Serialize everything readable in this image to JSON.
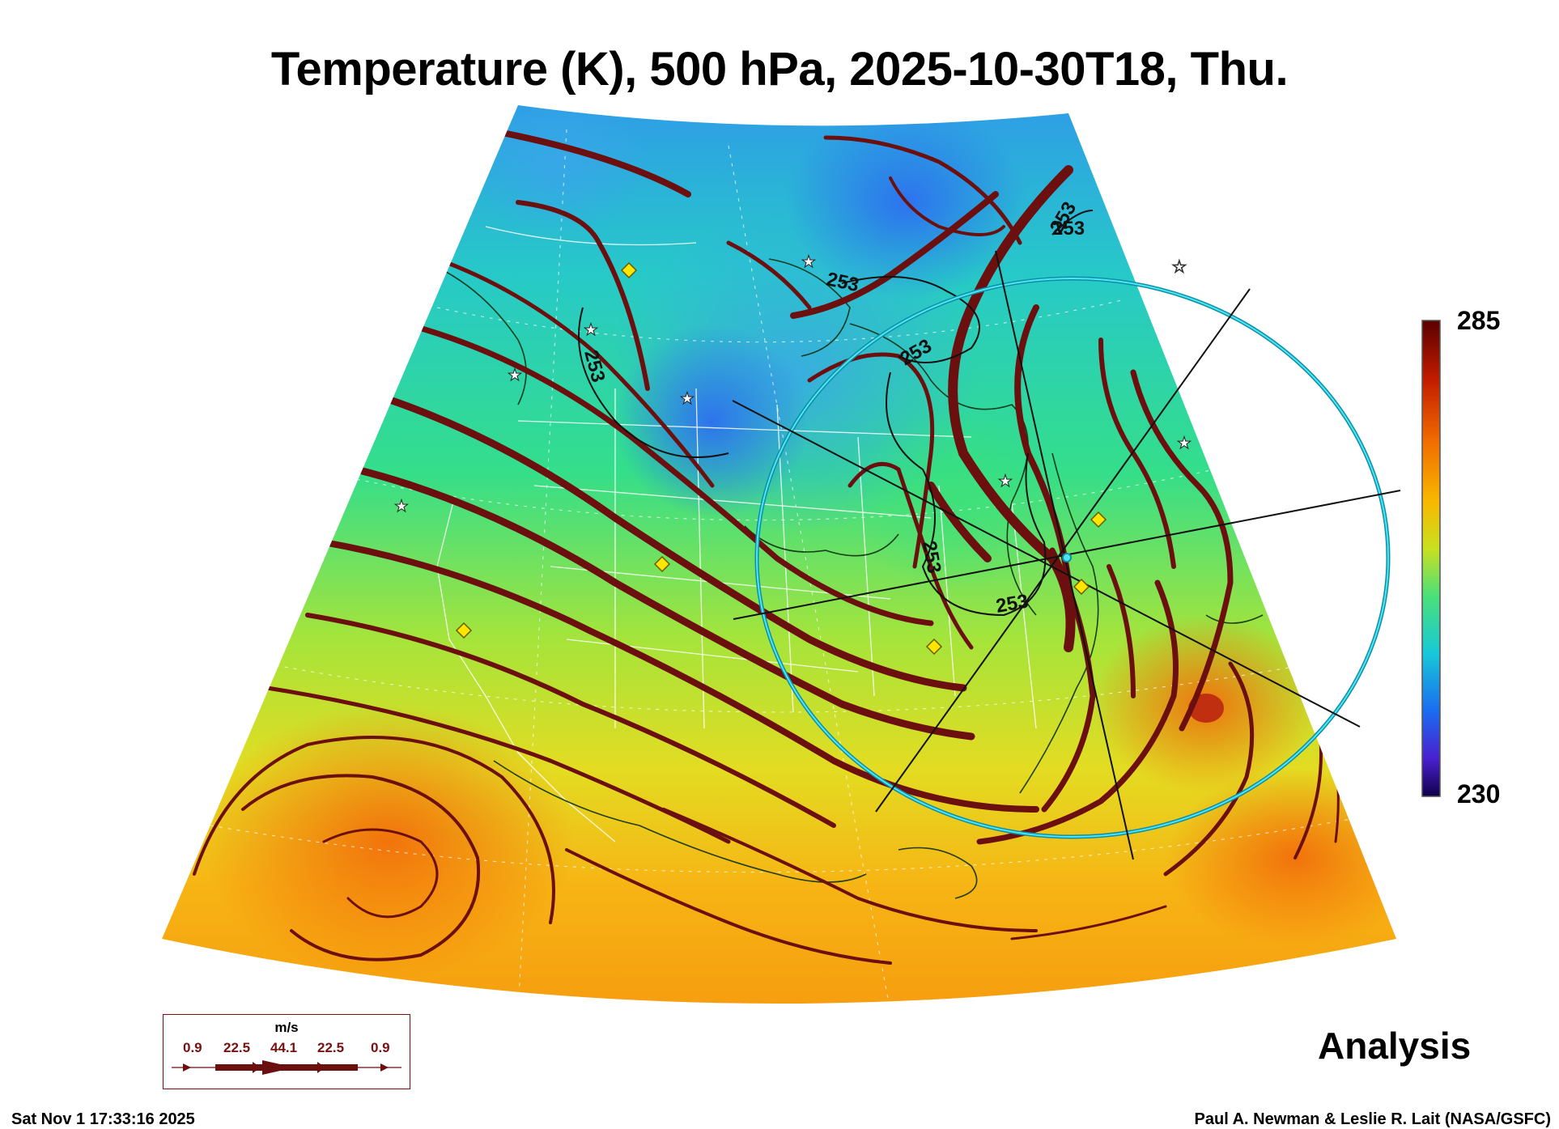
{
  "title": "Temperature (K), 500 hPa, 2025-10-30T18, Thu.",
  "colorbar": {
    "max": "285",
    "min": "230"
  },
  "contour_labels": [
    "253",
    "253",
    "253",
    "253",
    "253",
    "253",
    "253"
  ],
  "analysis_label": "Analysis",
  "timestamp": "Sat Nov  1 17:33:16 2025",
  "credit": "Paul A. Newman & Leslie R. Lait (NASA/GSFC)",
  "wind_legend": {
    "unit": "m/s",
    "values": [
      "0.9",
      "22.5",
      "44.1",
      "22.5",
      "0.9"
    ]
  },
  "colors": {
    "streamline": "#6b0f0f",
    "contour": "#111111",
    "circle": "#19b4c8",
    "marker_diamond": "#ffe600",
    "colorbar_top": "#5a0000",
    "colorbar_bottom": "#10004a"
  }
}
